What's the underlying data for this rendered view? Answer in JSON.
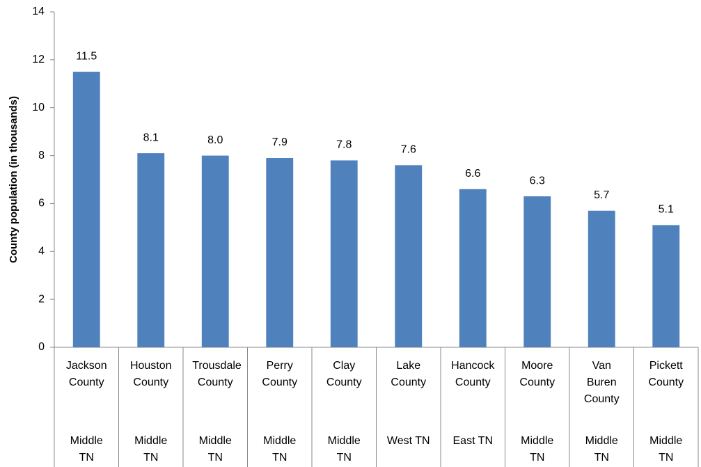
{
  "chart_data": {
    "type": "bar",
    "y_label": "County population  (in thousands)",
    "categories": [
      "Jackson County",
      "Houston County",
      "Trousdale County",
      "Perry County",
      "Clay County",
      "Lake County",
      "Hancock County",
      "Moore County",
      "Van Buren County",
      "Pickett County"
    ],
    "groups": [
      "Middle TN",
      "Middle TN",
      "Middle TN",
      "Middle TN",
      "Middle TN",
      "West TN",
      "East TN",
      "Middle TN",
      "Middle TN",
      "Middle TN"
    ],
    "values": [
      11.5,
      8.1,
      8.0,
      7.9,
      7.8,
      7.6,
      6.6,
      6.3,
      5.7,
      5.1
    ],
    "value_labels": [
      "11.5",
      "8.1",
      "8.0",
      "7.9",
      "7.8",
      "7.6",
      "6.6",
      "6.3",
      "5.7",
      "5.1"
    ],
    "color": "#4f81bd",
    "ylim": [
      0,
      14
    ],
    "yticks": [
      0,
      2,
      4,
      6,
      8,
      10,
      12,
      14
    ],
    "grid": false
  }
}
